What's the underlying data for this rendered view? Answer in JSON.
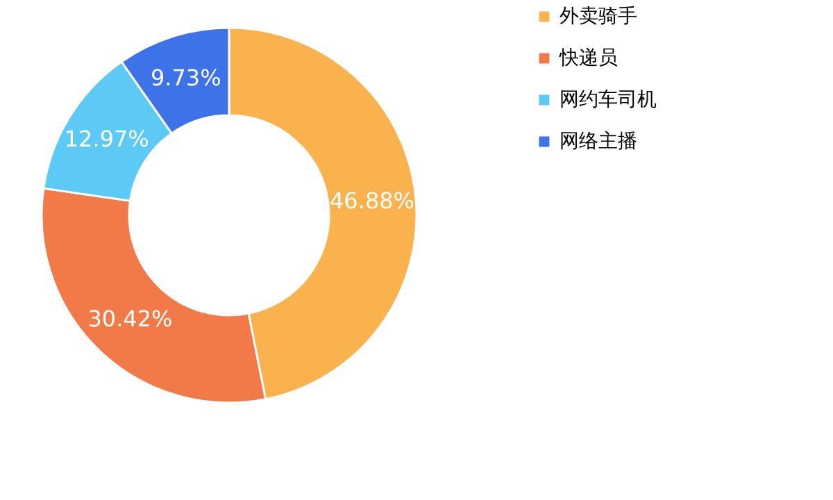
{
  "chart_data": {
    "type": "donut",
    "categories": [
      "外卖骑手",
      "快递员",
      "网约车司机",
      "网络主播"
    ],
    "values": [
      46.88,
      30.42,
      12.97,
      9.73
    ],
    "colors": [
      "#f9b24e",
      "#f27a48",
      "#5ccaf5",
      "#3d72e8"
    ],
    "value_labels": [
      "46.88%",
      "30.42%",
      "12.97%",
      "9.73%"
    ],
    "legend": "right"
  }
}
